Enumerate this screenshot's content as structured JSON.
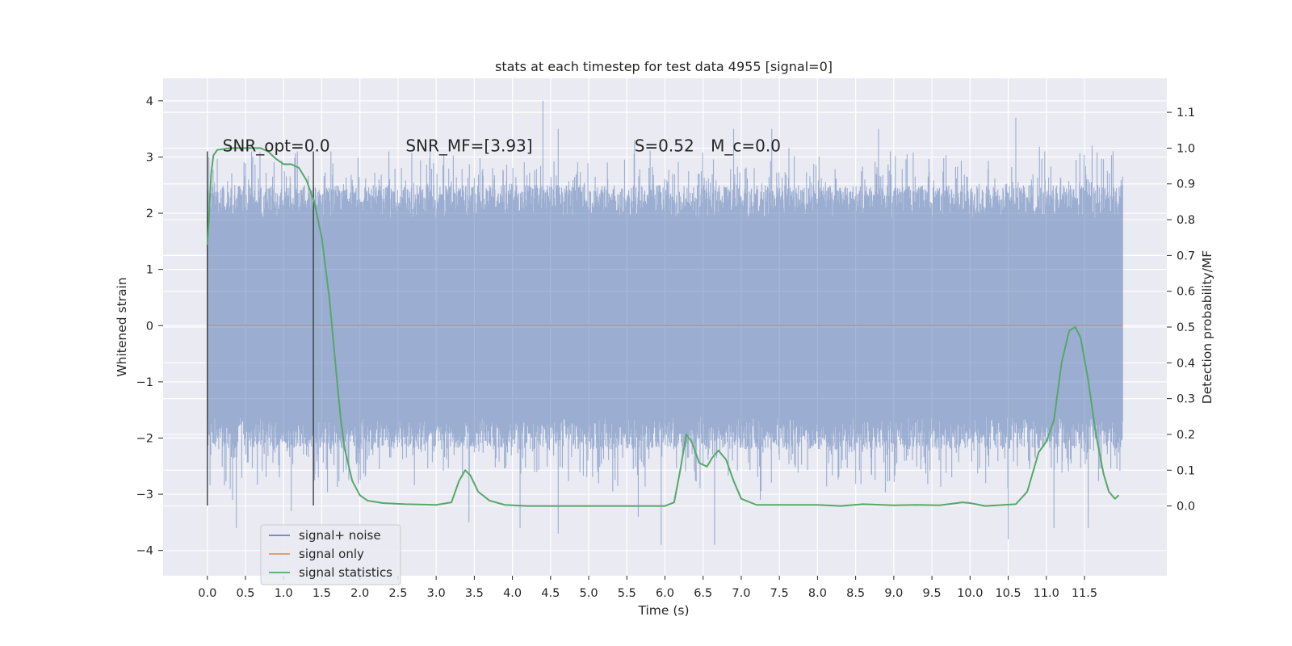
{
  "chart_data": {
    "type": "line",
    "title": "stats at each timestep for test data 4955 [signal=0]",
    "xlabel": "Time (s)",
    "ylabel_left": "Whitened strain",
    "ylabel_right": "Detection probability/MF",
    "xlim": [
      -0.58,
      12.58
    ],
    "ylim_left": [
      -4.45,
      4.4
    ],
    "ylim_right": [
      -0.195,
      1.195
    ],
    "xticks": [
      "0.0",
      "0.5",
      "1.0",
      "1.5",
      "2.0",
      "2.5",
      "3.0",
      "3.5",
      "4.0",
      "4.5",
      "5.0",
      "5.5",
      "6.0",
      "6.5",
      "7.0",
      "7.5",
      "8.0",
      "8.5",
      "9.0",
      "9.5",
      "10.0",
      "10.5",
      "11.0",
      "11.5"
    ],
    "yticks_left": [
      "4",
      "3",
      "2",
      "1",
      "0",
      "−1",
      "−2",
      "−3",
      "−4"
    ],
    "yticks_right": [
      "1.1",
      "1.0",
      "0.9",
      "0.8",
      "0.7",
      "0.6",
      "0.5",
      "0.4",
      "0.3",
      "0.2",
      "0.1",
      "0.0"
    ],
    "grid": true,
    "legend_position": "lower-left",
    "annotations": [
      {
        "text": "SNR_opt=0.0",
        "x": 0.2,
        "y": 3.2
      },
      {
        "text": "SNR_MF=[3.93]",
        "x": 2.6,
        "y": 3.2
      },
      {
        "text": "S=0.52",
        "x": 5.6,
        "y": 3.2
      },
      {
        "text": "M_c=0.0",
        "x": 6.6,
        "y": 3.2
      }
    ],
    "vertical_markers": [
      {
        "x": 0.0,
        "y_range": [
          -3.2,
          3.1
        ]
      },
      {
        "x": 1.39,
        "y_range": [
          -3.2,
          3.1
        ]
      }
    ],
    "series": [
      {
        "name": "signal+ noise",
        "axis": "left",
        "color": "#4c72b0",
        "style": "noise band",
        "x_range": [
          0.0,
          12.0
        ],
        "typical_range": [
          -2.2,
          2.5
        ],
        "max": 4.0,
        "min": -4.0,
        "peaks": [
          {
            "x": 0.02,
            "y": 3.0
          },
          {
            "x": 0.33,
            "y": -3.1
          },
          {
            "x": 0.58,
            "y": 3.1
          },
          {
            "x": 1.18,
            "y": 3.1
          },
          {
            "x": 1.62,
            "y": 3.1
          },
          {
            "x": 2.38,
            "y": 3.1
          },
          {
            "x": 4.4,
            "y": 4.0
          },
          {
            "x": 4.6,
            "y": 3.5
          },
          {
            "x": 5.6,
            "y": 3.3
          },
          {
            "x": 6.9,
            "y": 3.5
          },
          {
            "x": 7.4,
            "y": 3.5
          },
          {
            "x": 8.8,
            "y": 3.5
          },
          {
            "x": 10.6,
            "y": 3.7
          },
          {
            "x": 11.6,
            "y": 3.2
          },
          {
            "x": 0.38,
            "y": -3.6
          },
          {
            "x": 1.1,
            "y": -3.3
          },
          {
            "x": 3.43,
            "y": -3.5
          },
          {
            "x": 4.1,
            "y": -3.6
          },
          {
            "x": 4.6,
            "y": -3.7
          },
          {
            "x": 5.65,
            "y": -3.4
          },
          {
            "x": 5.95,
            "y": -3.9
          },
          {
            "x": 6.65,
            "y": -3.9
          },
          {
            "x": 7.25,
            "y": -3.1
          },
          {
            "x": 10.5,
            "y": -3.8
          },
          {
            "x": 11.1,
            "y": -3.6
          },
          {
            "x": 11.55,
            "y": -3.6
          }
        ]
      },
      {
        "name": "signal only",
        "axis": "left",
        "color": "#dd8452",
        "x": [
          0.0,
          12.0
        ],
        "values": [
          0.0,
          0.0
        ]
      },
      {
        "name": "signal statistics",
        "axis": "right",
        "color": "#55a868",
        "x": [
          0.0,
          0.02,
          0.05,
          0.08,
          0.13,
          0.3,
          0.5,
          0.6,
          0.7,
          0.8,
          0.9,
          1.0,
          1.1,
          1.2,
          1.3,
          1.4,
          1.5,
          1.6,
          1.7,
          1.75,
          1.8,
          1.9,
          2.0,
          2.1,
          2.3,
          2.6,
          3.0,
          3.2,
          3.3,
          3.38,
          3.45,
          3.55,
          3.7,
          3.9,
          4.2,
          5.0,
          6.0,
          6.12,
          6.2,
          6.28,
          6.35,
          6.45,
          6.55,
          6.62,
          6.7,
          6.8,
          6.9,
          7.0,
          7.2,
          8.0,
          8.3,
          8.6,
          9.0,
          9.3,
          9.6,
          9.9,
          10.0,
          10.2,
          10.6,
          10.75,
          10.9,
          11.0,
          11.1,
          11.2,
          11.3,
          11.38,
          11.45,
          11.55,
          11.65,
          11.75,
          11.82,
          11.9,
          11.95
        ],
        "values": [
          0.73,
          0.8,
          0.93,
          0.98,
          0.995,
          1.0,
          1.0,
          1.0,
          1.0,
          0.99,
          0.97,
          0.955,
          0.955,
          0.945,
          0.91,
          0.85,
          0.75,
          0.58,
          0.35,
          0.24,
          0.16,
          0.07,
          0.03,
          0.015,
          0.008,
          0.005,
          0.003,
          0.01,
          0.07,
          0.1,
          0.085,
          0.04,
          0.015,
          0.003,
          0.0,
          0.0,
          0.0,
          0.01,
          0.1,
          0.2,
          0.18,
          0.12,
          0.11,
          0.135,
          0.155,
          0.13,
          0.07,
          0.02,
          0.003,
          0.003,
          0.0,
          0.005,
          0.002,
          0.003,
          0.002,
          0.01,
          0.008,
          0.0,
          0.005,
          0.04,
          0.15,
          0.18,
          0.24,
          0.4,
          0.49,
          0.5,
          0.47,
          0.35,
          0.2,
          0.09,
          0.04,
          0.02,
          0.03
        ]
      }
    ]
  }
}
